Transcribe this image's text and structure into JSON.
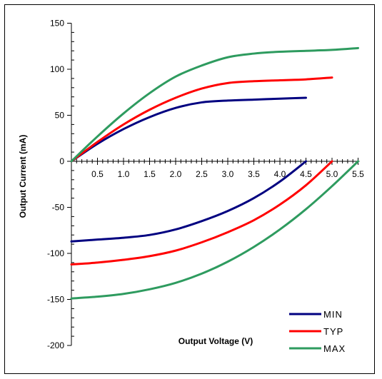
{
  "chart_data": {
    "type": "line",
    "title": "",
    "xlabel": "Output Voltage (V)",
    "ylabel": "Output Current (mA)",
    "xlim": [
      0,
      5.5
    ],
    "ylim": [
      -200,
      150
    ],
    "x_ticks": [
      "0.5",
      "1.0",
      "1.5",
      "2.0",
      "2.5",
      "3.0",
      "3.5",
      "4.0",
      "4.5",
      "5.0",
      "5.5"
    ],
    "x_tick_values": [
      0.5,
      1.0,
      1.5,
      2.0,
      2.5,
      3.0,
      3.5,
      4.0,
      4.5,
      5.0,
      5.5
    ],
    "y_ticks": [
      "150",
      "100",
      "50",
      "0",
      "-50",
      "-100",
      "-150",
      "-200"
    ],
    "y_tick_values": [
      150,
      100,
      50,
      0,
      -50,
      -100,
      -150,
      -200
    ],
    "grid": false,
    "legend_position": "bottom-right",
    "series": [
      {
        "name": "MIN",
        "color": "#000080",
        "source": [
          [
            0,
            0
          ],
          [
            0.5,
            19
          ],
          [
            1.0,
            35
          ],
          [
            1.5,
            48
          ],
          [
            2.0,
            58
          ],
          [
            2.5,
            64
          ],
          [
            3.0,
            66
          ],
          [
            3.5,
            67
          ],
          [
            4.0,
            68
          ],
          [
            4.5,
            69
          ]
        ],
        "sink": [
          [
            0,
            -87
          ],
          [
            0.5,
            -85
          ],
          [
            1.0,
            -83
          ],
          [
            1.5,
            -80
          ],
          [
            2.0,
            -74
          ],
          [
            2.5,
            -65
          ],
          [
            3.0,
            -54
          ],
          [
            3.5,
            -40
          ],
          [
            4.0,
            -22
          ],
          [
            4.5,
            0
          ]
        ]
      },
      {
        "name": "TYP",
        "color": "#ff0000",
        "source": [
          [
            0,
            0
          ],
          [
            0.5,
            21
          ],
          [
            1.0,
            40
          ],
          [
            1.5,
            56
          ],
          [
            2.0,
            69
          ],
          [
            2.5,
            79
          ],
          [
            3.0,
            85
          ],
          [
            3.5,
            87
          ],
          [
            4.0,
            88
          ],
          [
            4.5,
            89
          ],
          [
            5.0,
            91
          ]
        ],
        "sink": [
          [
            0,
            -112
          ],
          [
            0.5,
            -110
          ],
          [
            1.0,
            -107
          ],
          [
            1.5,
            -103
          ],
          [
            2.0,
            -97
          ],
          [
            2.5,
            -88
          ],
          [
            3.0,
            -77
          ],
          [
            3.5,
            -64
          ],
          [
            4.0,
            -47
          ],
          [
            4.5,
            -26
          ],
          [
            5.0,
            0
          ]
        ]
      },
      {
        "name": "MAX",
        "color": "#2e9b5f",
        "source": [
          [
            0,
            0
          ],
          [
            0.5,
            27
          ],
          [
            1.0,
            52
          ],
          [
            1.5,
            74
          ],
          [
            2.0,
            92
          ],
          [
            2.5,
            104
          ],
          [
            3.0,
            113
          ],
          [
            3.5,
            117
          ],
          [
            4.0,
            119
          ],
          [
            4.5,
            120
          ],
          [
            5.0,
            121
          ],
          [
            5.5,
            123
          ]
        ],
        "sink": [
          [
            0,
            -149
          ],
          [
            0.5,
            -147
          ],
          [
            1.0,
            -144
          ],
          [
            1.5,
            -139
          ],
          [
            2.0,
            -132
          ],
          [
            2.5,
            -122
          ],
          [
            3.0,
            -109
          ],
          [
            3.5,
            -93
          ],
          [
            4.0,
            -74
          ],
          [
            4.5,
            -52
          ],
          [
            5.0,
            -27
          ],
          [
            5.5,
            0
          ]
        ]
      }
    ]
  }
}
